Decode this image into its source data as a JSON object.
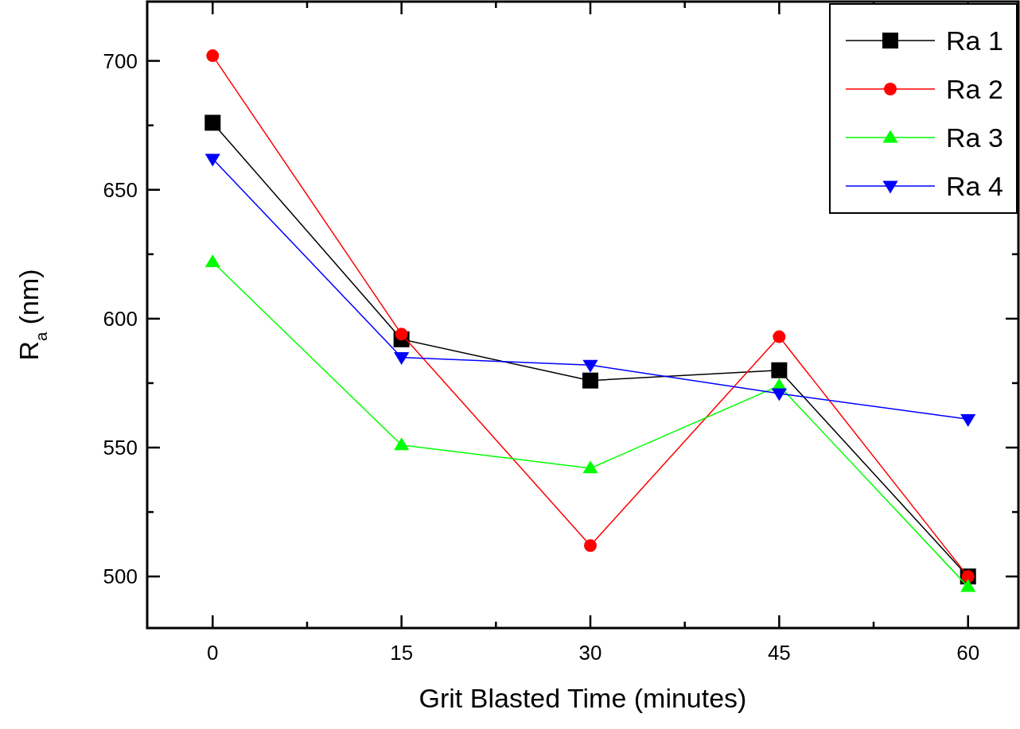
{
  "chart_data": {
    "type": "line",
    "xlabel": "Grit Blasted Time (minutes)",
    "ylabel": "R$_{a}$ (nm)",
    "x": [
      0,
      15,
      30,
      45,
      60
    ],
    "series": [
      {
        "name": "Ra 1",
        "color": "#000000",
        "marker": "square",
        "values": [
          676,
          592,
          576,
          580,
          500
        ]
      },
      {
        "name": "Ra 2",
        "color": "#ff0000",
        "marker": "circle",
        "values": [
          702,
          594,
          512,
          593,
          500
        ]
      },
      {
        "name": "Ra 3",
        "color": "#00ff00",
        "marker": "triangle",
        "values": [
          622,
          551,
          542,
          574,
          496
        ]
      },
      {
        "name": "Ra 4",
        "color": "#0000ff",
        "marker": "triangle-down",
        "values": [
          662,
          585,
          582,
          571,
          561
        ]
      }
    ],
    "xlim": [
      -5.2,
      64
    ],
    "ylim": [
      480,
      723
    ],
    "xticks": [
      0,
      {
        "value": 7.5,
        "label": null
      },
      15,
      {
        "value": 22.5,
        "label": null
      },
      30,
      {
        "value": 37.5,
        "label": null
      },
      45,
      {
        "value": 52.5,
        "label": null
      },
      60
    ],
    "yticks": [
      500,
      {
        "value": 525,
        "label": null
      },
      550,
      {
        "value": 575,
        "label": null
      },
      600,
      {
        "value": 625,
        "label": null
      },
      650,
      {
        "value": 675,
        "label": null
      },
      700
    ],
    "grid": false,
    "legend": "top right",
    "line_style": "solid"
  }
}
